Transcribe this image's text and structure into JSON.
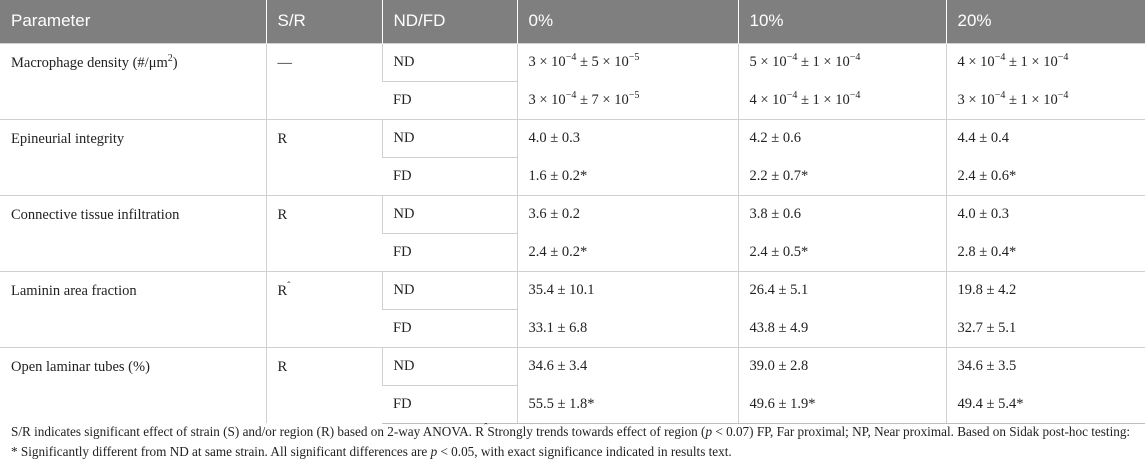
{
  "table": {
    "headers": [
      "Parameter",
      "S/R",
      "ND/FD",
      "0%",
      "10%",
      "20%"
    ],
    "rows": [
      {
        "parameter_text": "Macrophage density (#/μm",
        "parameter_sup": "2",
        "parameter_tail": ")",
        "sr": "—",
        "nd": {
          "label": "ND",
          "v0": {
            "a": "3 × 10",
            "ae": "−4",
            "b": " ± 5 × 10",
            "be": "−5"
          },
          "v10": {
            "a": "5 × 10",
            "ae": "−4",
            "b": " ± 1 × 10",
            "be": "−4"
          },
          "v20": {
            "a": "4 × 10",
            "ae": "−4",
            "b": " ± 1 × 10",
            "be": "−4"
          }
        },
        "fd": {
          "label": "FD",
          "v0": {
            "a": "3 × 10",
            "ae": "−4",
            "b": " ± 7 × 10",
            "be": "−5"
          },
          "v10": {
            "a": "4 × 10",
            "ae": "−4",
            "b": " ± 1 × 10",
            "be": "−4"
          },
          "v20": {
            "a": "3 × 10",
            "ae": "−4",
            "b": " ± 1 × 10",
            "be": "−4"
          }
        }
      },
      {
        "parameter": "Epineurial integrity",
        "sr": "R",
        "nd": {
          "label": "ND",
          "v0": "4.0 ± 0.3",
          "v10": "4.2 ± 0.6",
          "v20": "4.4 ± 0.4"
        },
        "fd": {
          "label": "FD",
          "v0": "1.6 ± 0.2*",
          "v10": "2.2 ± 0.7*",
          "v20": "2.4 ± 0.6*"
        }
      },
      {
        "parameter": "Connective tissue infiltration",
        "sr": "R",
        "nd": {
          "label": "ND",
          "v0": "3.6 ± 0.2",
          "v10": "3.8 ± 0.6",
          "v20": "4.0 ± 0.3"
        },
        "fd": {
          "label": "FD",
          "v0": "2.4 ± 0.2*",
          "v10": "2.4 ± 0.5*",
          "v20": "2.8 ± 0.4*"
        }
      },
      {
        "parameter": "Laminin area fraction",
        "sr": "R",
        "sr_sup": "ˆ",
        "nd": {
          "label": "ND",
          "v0": "35.4 ± 10.1",
          "v10": "26.4 ± 5.1",
          "v20": "19.8 ± 4.2"
        },
        "fd": {
          "label": "FD",
          "v0": "33.1 ± 6.8",
          "v10": "43.8 ± 4.9",
          "v20": "32.7 ± 5.1"
        }
      },
      {
        "parameter": "Open laminar tubes (%)",
        "sr": "R",
        "nd": {
          "label": "ND",
          "v0": "34.6 ± 3.4",
          "v10": "39.0 ± 2.8",
          "v20": "34.6 ± 3.5"
        },
        "fd": {
          "label": "FD",
          "v0": "55.5 ± 1.8*",
          "v10": "49.6 ± 1.9*",
          "v20": "49.4 ± 5.4*"
        }
      }
    ]
  },
  "footnote": {
    "part1": "S/R indicates significant effect of strain (S) and/or region (R) based on 2-way ANOVA. R",
    "caret": "ˆ",
    "part2": "Strongly trends towards effect of region (",
    "p1": "p",
    "part3": " < 0.07) FP, Far proximal; NP, Near proximal. Based on Sidak post-hoc testing: * Significantly different from ND at same strain. All significant differences are ",
    "p2": "p",
    "part4": " < 0.05, with exact significance indicated in results text."
  }
}
